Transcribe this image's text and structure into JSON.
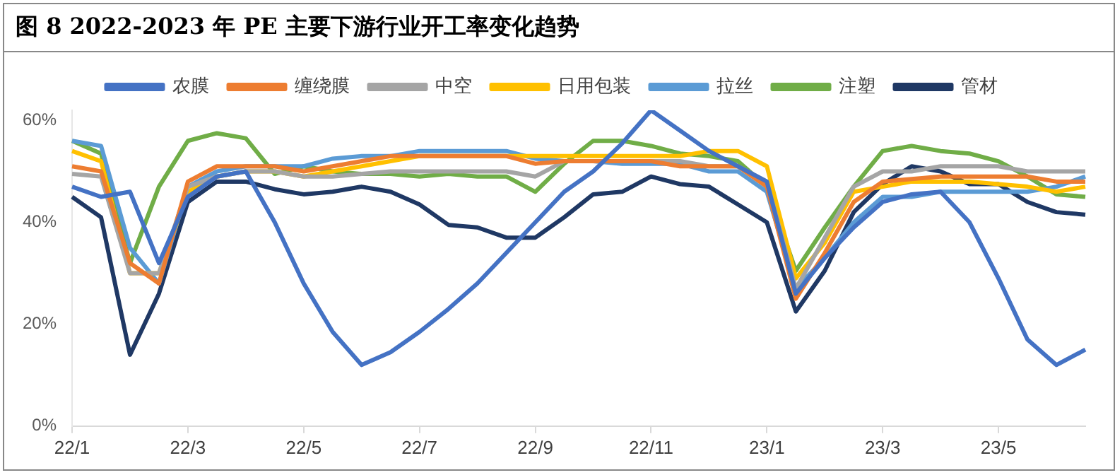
{
  "chart_data": {
    "type": "line",
    "title": "图 8 2022-2023 年 PE 主要下游行业开工率变化趋势",
    "categories": [
      "22/1",
      null,
      null,
      null,
      "22/3",
      null,
      null,
      null,
      "22/5",
      null,
      null,
      null,
      "22/7",
      null,
      null,
      null,
      "22/9",
      null,
      null,
      null,
      "22/11",
      null,
      null,
      null,
      "23/1",
      null,
      null,
      null,
      "23/3",
      null,
      null,
      null,
      "23/5",
      null,
      null,
      null
    ],
    "ylim": [
      0,
      62
    ],
    "yticks": [
      {
        "value": 0,
        "label": "0%"
      },
      {
        "value": 20,
        "label": "20%"
      },
      {
        "value": 40,
        "label": "40%"
      },
      {
        "value": 60,
        "label": "60%"
      }
    ],
    "grid": false,
    "legend": "top",
    "marker": "none",
    "line_style": "solid",
    "series": [
      {
        "name": "农膜",
        "color": "#4472c4",
        "values": [
          47,
          45,
          46,
          32,
          45,
          49,
          50,
          40,
          28,
          18.5,
          12,
          14.5,
          18.5,
          23,
          28,
          34,
          40,
          46,
          50,
          55.5,
          62,
          58,
          54,
          51,
          48,
          26,
          33,
          39,
          44,
          45.5,
          46,
          40,
          29,
          17,
          12,
          15
        ]
      },
      {
        "name": "缠绕膜",
        "color": "#ed7d31",
        "values": [
          51,
          50,
          32,
          28,
          48,
          51,
          51,
          51,
          50,
          51,
          52,
          53,
          53,
          53,
          53,
          53,
          51.5,
          52,
          52,
          52,
          52,
          51,
          51,
          51,
          47,
          25,
          34,
          44,
          48,
          48.5,
          49,
          49,
          49,
          49,
          48,
          48
        ]
      },
      {
        "name": "中空",
        "color": "#a5a5a5",
        "values": [
          49.5,
          49,
          30,
          30,
          47,
          49,
          50,
          50,
          49,
          49,
          49.5,
          50,
          50,
          50,
          50,
          50,
          49,
          52,
          52,
          52,
          52,
          52,
          51,
          51,
          48,
          27,
          37,
          47,
          50,
          50,
          51,
          51,
          51,
          50,
          50,
          50
        ]
      },
      {
        "name": "日用包装",
        "color": "#ffc000",
        "values": [
          54,
          52,
          30,
          30,
          46,
          49,
          50,
          50,
          49,
          50,
          51,
          52,
          53,
          53,
          53,
          53,
          53,
          53,
          53,
          53,
          53,
          53,
          54,
          54,
          51,
          29,
          36,
          46,
          47,
          48,
          48,
          48,
          47.5,
          47,
          46,
          47
        ]
      },
      {
        "name": "拉丝",
        "color": "#5b9bd5",
        "values": [
          56,
          55,
          35,
          28,
          47,
          50,
          51,
          51,
          51,
          52.5,
          53,
          53,
          54,
          54,
          54,
          54,
          52.5,
          52,
          52,
          51.5,
          51.5,
          51.5,
          50,
          50,
          46,
          27,
          33,
          40,
          45,
          45,
          46,
          46,
          46,
          46,
          47,
          49
        ]
      },
      {
        "name": "注塑",
        "color": "#70ad47",
        "values": [
          56,
          53.5,
          32,
          47,
          56,
          57.5,
          56.5,
          49.5,
          51,
          50,
          49.5,
          49.5,
          49,
          49.5,
          49,
          49,
          46,
          51.5,
          56,
          56,
          55,
          53.5,
          53,
          52,
          47,
          30.5,
          39,
          47,
          54,
          55,
          54,
          53.5,
          52,
          49,
          45.5,
          45
        ]
      },
      {
        "name": "管材",
        "color": "#1f3864",
        "values": [
          45,
          41,
          14,
          26,
          44,
          48,
          48,
          46.5,
          45.5,
          46,
          47,
          46,
          43.5,
          39.5,
          39,
          37,
          37,
          41,
          45.5,
          46,
          49,
          47.5,
          47,
          43.5,
          40,
          22.5,
          30.5,
          42,
          47.5,
          51,
          50,
          47.5,
          47.5,
          44,
          42,
          41.5
        ]
      }
    ]
  }
}
